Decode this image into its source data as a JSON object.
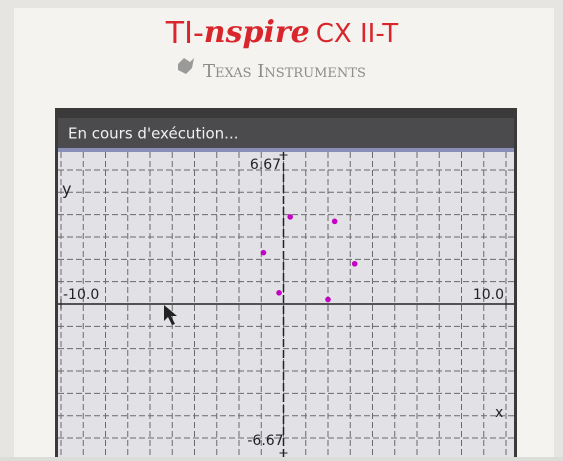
{
  "header": {
    "brand_prefix": "TI-",
    "brand_name": "nspire",
    "brand_model": "CX II-T",
    "maker": "Texas Instruments"
  },
  "status_bar": {
    "text": "En cours d'exécution..."
  },
  "chart_data": {
    "type": "scatter",
    "x_label": "x",
    "y_label": "y",
    "x": [
      0.3,
      2.3,
      -0.9,
      3.2,
      -0.2,
      2.0
    ],
    "values": [
      3.9,
      3.7,
      2.3,
      1.8,
      0.5,
      0.2
    ],
    "color": "#c400c4",
    "xlim": [
      -10,
      10
    ],
    "ylim": [
      -6.67,
      6.67
    ],
    "xticks": [
      {
        "value": -10,
        "label": "-10.0"
      },
      {
        "value": 10,
        "label": "10.0"
      }
    ],
    "yticks": [
      -6.67,
      6.67
    ],
    "grid": true,
    "grid_step": 1
  }
}
